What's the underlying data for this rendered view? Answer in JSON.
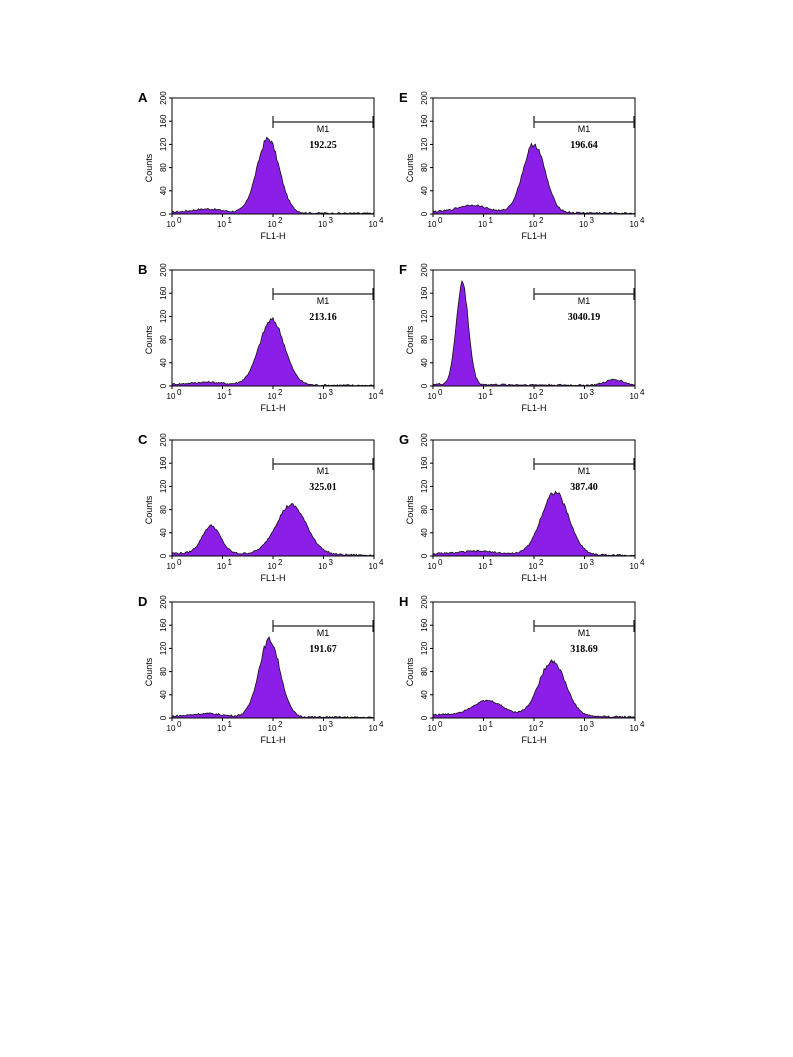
{
  "colors": {
    "fill": "#8b1fe8",
    "stroke": "#111111",
    "axis": "#000000"
  },
  "chart_data": [
    {
      "panel": "A",
      "type": "area",
      "xscale": "log",
      "xlim": [
        1,
        10000
      ],
      "ylim": [
        0,
        200
      ],
      "yticks": [
        "0",
        "40",
        "80",
        "120",
        "160",
        "200"
      ],
      "xticks": [
        "10",
        "10",
        "10",
        "10",
        "10"
      ],
      "xtick_exps": [
        "0",
        "1",
        "2",
        "3",
        "4"
      ],
      "xlabel": "FL1-H",
      "ylabel": "Counts",
      "gate_label": "M1",
      "gate_range": [
        100,
        10000
      ],
      "value_label": "192.25",
      "peaks": [
        {
          "center": 80,
          "height": 128,
          "width": 0.22
        },
        {
          "center": 5,
          "height": 6,
          "width": 0.3
        }
      ],
      "baseline": 3
    },
    {
      "panel": "B",
      "type": "area",
      "xscale": "log",
      "xlim": [
        1,
        10000
      ],
      "ylim": [
        0,
        200
      ],
      "yticks": [
        "0",
        "40",
        "80",
        "120",
        "160",
        "200"
      ],
      "xticks": [
        "10",
        "10",
        "10",
        "10",
        "10"
      ],
      "xtick_exps": [
        "0",
        "1",
        "2",
        "3",
        "4"
      ],
      "xlabel": "FL1-H",
      "ylabel": "Counts",
      "gate_label": "M1",
      "gate_range": [
        100,
        10000
      ],
      "value_label": "213.16",
      "peaks": [
        {
          "center": 95,
          "height": 112,
          "width": 0.25
        },
        {
          "center": 5,
          "height": 4,
          "width": 0.3
        }
      ],
      "baseline": 3
    },
    {
      "panel": "C",
      "type": "area",
      "xscale": "log",
      "xlim": [
        1,
        10000
      ],
      "ylim": [
        0,
        200
      ],
      "yticks": [
        "0",
        "40",
        "80",
        "120",
        "160",
        "200"
      ],
      "xticks": [
        "10",
        "10",
        "10",
        "10",
        "10"
      ],
      "xtick_exps": [
        "0",
        "1",
        "2",
        "3",
        "4"
      ],
      "xlabel": "FL1-H",
      "ylabel": "Counts",
      "gate_label": "M1",
      "gate_range": [
        100,
        10000
      ],
      "value_label": "325.01",
      "peaks": [
        {
          "center": 6,
          "height": 48,
          "width": 0.18
        },
        {
          "center": 230,
          "height": 85,
          "width": 0.3
        }
      ],
      "baseline": 5
    },
    {
      "panel": "D",
      "type": "area",
      "xscale": "log",
      "xlim": [
        1,
        10000
      ],
      "ylim": [
        0,
        200
      ],
      "yticks": [
        "0",
        "40",
        "80",
        "120",
        "160",
        "200"
      ],
      "xticks": [
        "10",
        "10",
        "10",
        "10",
        "10"
      ],
      "xtick_exps": [
        "0",
        "1",
        "2",
        "3",
        "4"
      ],
      "xlabel": "FL1-H",
      "ylabel": "Counts",
      "gate_label": "M1",
      "gate_range": [
        100,
        10000
      ],
      "value_label": "191.67",
      "peaks": [
        {
          "center": 85,
          "height": 133,
          "width": 0.21
        },
        {
          "center": 5,
          "height": 5,
          "width": 0.3
        }
      ],
      "baseline": 3
    },
    {
      "panel": "E",
      "type": "area",
      "xscale": "log",
      "xlim": [
        1,
        10000
      ],
      "ylim": [
        0,
        200
      ],
      "yticks": [
        "0",
        "40",
        "80",
        "120",
        "160",
        "200"
      ],
      "xticks": [
        "10",
        "10",
        "10",
        "10",
        "10"
      ],
      "xtick_exps": [
        "0",
        "1",
        "2",
        "3",
        "4"
      ],
      "xlabel": "FL1-H",
      "ylabel": "Counts",
      "gate_label": "M1",
      "gate_range": [
        100,
        10000
      ],
      "value_label": "196.64",
      "peaks": [
        {
          "center": 100,
          "height": 118,
          "width": 0.22
        },
        {
          "center": 6,
          "height": 12,
          "width": 0.28
        }
      ],
      "baseline": 4
    },
    {
      "panel": "F",
      "type": "area",
      "xscale": "log",
      "xlim": [
        1,
        10000
      ],
      "ylim": [
        0,
        200
      ],
      "yticks": [
        "0",
        "40",
        "80",
        "120",
        "160",
        "200"
      ],
      "xticks": [
        "10",
        "10",
        "10",
        "10",
        "10"
      ],
      "xtick_exps": [
        "0",
        "1",
        "2",
        "3",
        "4"
      ],
      "xlabel": "FL1-H",
      "ylabel": "Counts",
      "gate_label": "M1",
      "gate_range": [
        100,
        10000
      ],
      "value_label": "3040.19",
      "peaks": [
        {
          "center": 3.8,
          "height": 175,
          "width": 0.12
        },
        {
          "center": 4000,
          "height": 10,
          "width": 0.18
        }
      ],
      "baseline": 3
    },
    {
      "panel": "G",
      "type": "area",
      "xscale": "log",
      "xlim": [
        1,
        10000
      ],
      "ylim": [
        0,
        200
      ],
      "yticks": [
        "0",
        "40",
        "80",
        "120",
        "160",
        "200"
      ],
      "xticks": [
        "10",
        "10",
        "10",
        "10",
        "10"
      ],
      "xtick_exps": [
        "0",
        "1",
        "2",
        "3",
        "4"
      ],
      "xlabel": "FL1-H",
      "ylabel": "Counts",
      "gate_label": "M1",
      "gate_range": [
        100,
        10000
      ],
      "value_label": "387.40",
      "peaks": [
        {
          "center": 260,
          "height": 108,
          "width": 0.27
        },
        {
          "center": 8,
          "height": 5,
          "width": 0.35
        }
      ],
      "baseline": 4
    },
    {
      "panel": "H",
      "type": "area",
      "xscale": "log",
      "xlim": [
        1,
        10000
      ],
      "ylim": [
        0,
        200
      ],
      "yticks": [
        "0",
        "40",
        "80",
        "120",
        "160",
        "200"
      ],
      "xticks": [
        "10",
        "10",
        "10",
        "10",
        "10"
      ],
      "xtick_exps": [
        "0",
        "1",
        "2",
        "3",
        "4"
      ],
      "xlabel": "FL1-H",
      "ylabel": "Counts",
      "gate_label": "M1",
      "gate_range": [
        100,
        10000
      ],
      "value_label": "318.69",
      "peaks": [
        {
          "center": 12,
          "height": 25,
          "width": 0.3
        },
        {
          "center": 230,
          "height": 95,
          "width": 0.26
        }
      ],
      "baseline": 6
    }
  ]
}
